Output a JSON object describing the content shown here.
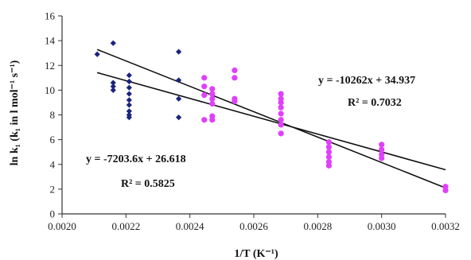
{
  "chart_data": {
    "type": "scatter",
    "xlabel": "1/T (K⁻¹)",
    "ylabel": "ln k₁ (k₁ in l mol⁻¹ s⁻¹)",
    "xlim": [
      0.002,
      0.0032
    ],
    "ylim": [
      0,
      16
    ],
    "xticks": [
      "0.0020",
      "0.0022",
      "0.0024",
      "0.0026",
      "0.0028",
      "0.0030",
      "0.0032"
    ],
    "yticks": [
      "0",
      "2",
      "4",
      "6",
      "8",
      "10",
      "12",
      "14",
      "16"
    ],
    "grid": false,
    "series": [
      {
        "color": "#1a237e",
        "points": [
          [
            0.00211,
            12.9
          ],
          [
            0.00216,
            13.8
          ],
          [
            0.00216,
            10.6
          ],
          [
            0.00216,
            10.3
          ],
          [
            0.00216,
            10.0
          ],
          [
            0.00221,
            11.2
          ],
          [
            0.00221,
            10.7
          ],
          [
            0.00221,
            10.2
          ],
          [
            0.00221,
            9.7
          ],
          [
            0.00221,
            9.2
          ],
          [
            0.00221,
            8.8
          ],
          [
            0.00221,
            8.3
          ],
          [
            0.00221,
            8.0
          ],
          [
            0.00221,
            7.8
          ],
          [
            0.002365,
            13.1
          ],
          [
            0.002365,
            10.8
          ],
          [
            0.002365,
            9.3
          ],
          [
            0.002365,
            7.8
          ]
        ]
      },
      {
        "color": "#e040fb",
        "points": [
          [
            0.002445,
            11.0
          ],
          [
            0.002445,
            10.3
          ],
          [
            0.002445,
            9.6
          ],
          [
            0.002445,
            7.6
          ],
          [
            0.00247,
            10.1
          ],
          [
            0.00247,
            9.7
          ],
          [
            0.00247,
            9.3
          ],
          [
            0.00247,
            8.9
          ],
          [
            0.00247,
            7.9
          ],
          [
            0.00247,
            7.6
          ],
          [
            0.00254,
            11.6
          ],
          [
            0.00254,
            11.0
          ],
          [
            0.00254,
            9.3
          ],
          [
            0.00254,
            9.1
          ],
          [
            0.002685,
            9.7
          ],
          [
            0.002685,
            9.3
          ],
          [
            0.002685,
            9.0
          ],
          [
            0.002685,
            8.6
          ],
          [
            0.002685,
            8.1
          ],
          [
            0.002685,
            7.6
          ],
          [
            0.002685,
            7.2
          ],
          [
            0.002685,
            6.5
          ],
          [
            0.002835,
            5.8
          ],
          [
            0.002835,
            5.4
          ],
          [
            0.002835,
            5.0
          ],
          [
            0.002835,
            4.6
          ],
          [
            0.002835,
            4.2
          ],
          [
            0.002835,
            3.9
          ],
          [
            0.003,
            5.6
          ],
          [
            0.003,
            5.2
          ],
          [
            0.003,
            4.8
          ],
          [
            0.003,
            4.5
          ],
          [
            0.0032,
            2.2
          ],
          [
            0.0032,
            1.9
          ]
        ]
      }
    ],
    "trendlines": [
      {
        "slope": -7203.6,
        "intercept": 26.618,
        "x_range": [
          0.00211,
          0.0032
        ]
      },
      {
        "slope": -10262,
        "intercept": 34.937,
        "x_range": [
          0.00211,
          0.0032
        ]
      }
    ],
    "annotations": [
      {
        "text": "y = -10262x + 34.937"
      },
      {
        "text": "R² = 0.7032"
      },
      {
        "text": "y = -7203.6x + 26.618"
      },
      {
        "text": "R² = 0.5825"
      }
    ]
  }
}
